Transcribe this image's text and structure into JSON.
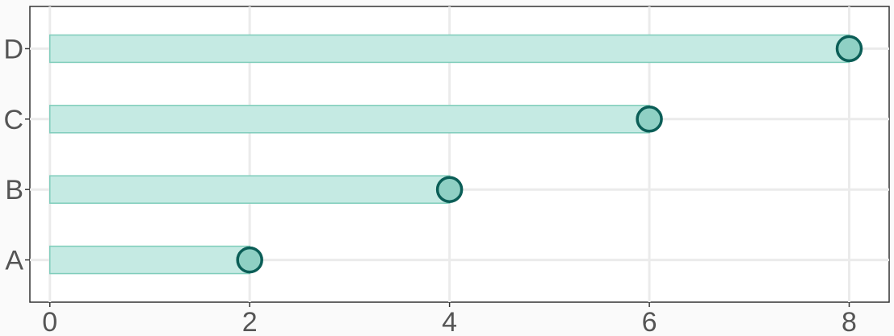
{
  "chart_data": {
    "type": "bar",
    "orientation": "horizontal",
    "categories": [
      "A",
      "B",
      "C",
      "D"
    ],
    "values": [
      2,
      4,
      6,
      8
    ],
    "title": "",
    "xlabel": "",
    "ylabel": "",
    "xlim": [
      -0.2,
      8.4
    ],
    "xticks": [
      "0",
      "2",
      "4",
      "6",
      "8"
    ],
    "grid": true,
    "legend": "none",
    "markers": "circle at bar end",
    "colors": {
      "bar_fill": "#c5eae3",
      "bar_stroke": "#7fcdbb",
      "marker_fill": "#8fd0c4",
      "marker_stroke": "#0b5e57"
    }
  }
}
